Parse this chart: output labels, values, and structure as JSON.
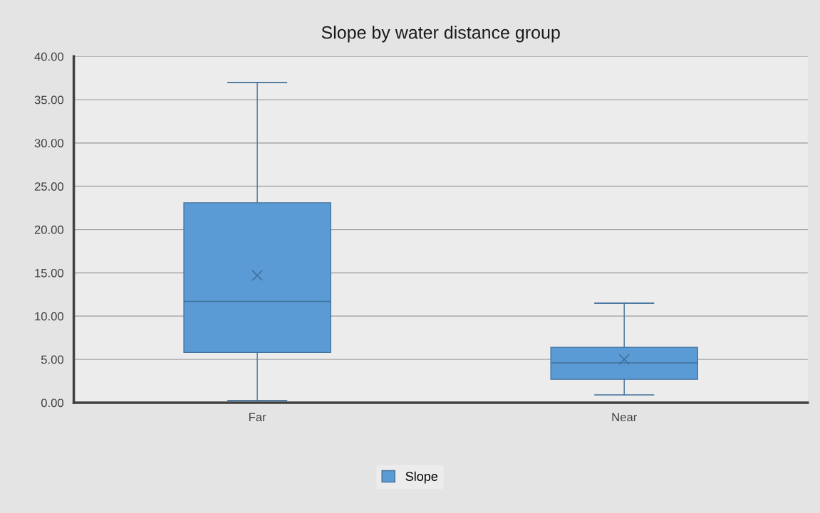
{
  "chart_data": {
    "type": "box",
    "title": "Slope by water distance group",
    "categories": [
      "Far",
      "Near"
    ],
    "series": [
      {
        "name": "Slope",
        "color": "#5b9bd5",
        "boxes": [
          {
            "low": 0.25,
            "q1": 5.8,
            "median": 11.7,
            "q3": 23.1,
            "high": 37.0,
            "mean": 14.7
          },
          {
            "low": 0.9,
            "q1": 2.7,
            "median": 4.6,
            "q3": 6.4,
            "high": 11.5,
            "mean": 5.0
          }
        ]
      }
    ],
    "ylim": [
      0,
      40
    ],
    "yticks": [
      {
        "value": 0,
        "label": "0.00"
      },
      {
        "value": 5,
        "label": "5.00"
      },
      {
        "value": 10,
        "label": "10.00"
      },
      {
        "value": 15,
        "label": "15.00"
      },
      {
        "value": 20,
        "label": "20.00"
      },
      {
        "value": 25,
        "label": "25.00"
      },
      {
        "value": 30,
        "label": "30.00"
      },
      {
        "value": 35,
        "label": "35.00"
      },
      {
        "value": 40,
        "label": "40.00"
      }
    ],
    "grid": "y",
    "legend": "bottom"
  }
}
